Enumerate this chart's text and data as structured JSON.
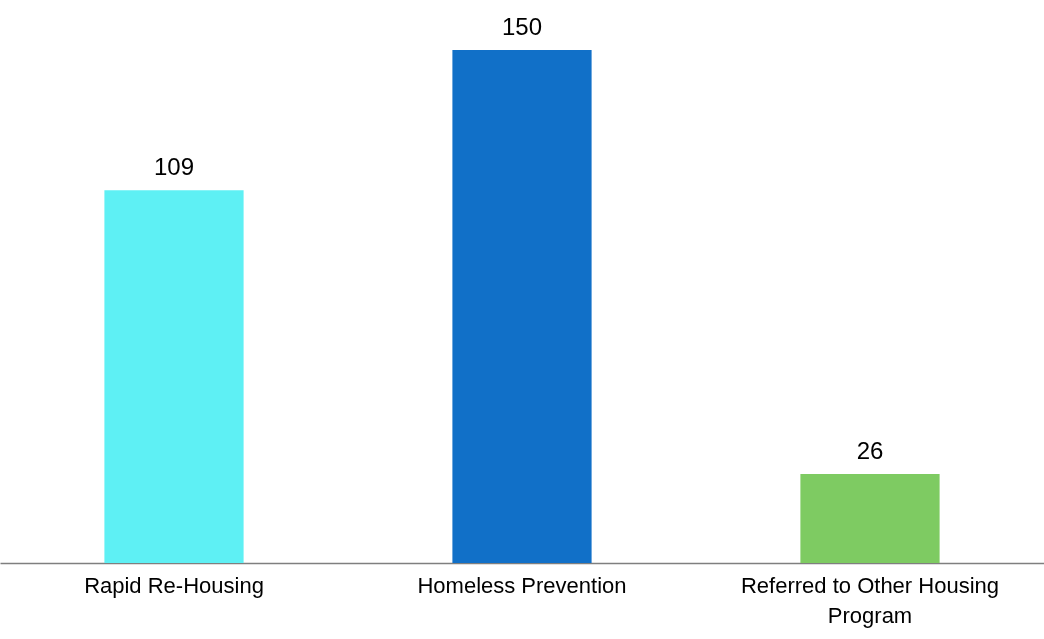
{
  "chart_data": {
    "type": "bar",
    "categories": [
      "Rapid Re-Housing",
      "Homeless Prevention",
      "Referred to Other Housing Program"
    ],
    "values": [
      109,
      150,
      26
    ],
    "colors": [
      "#5ef0f4",
      "#1170c8",
      "#7ecb62"
    ],
    "data_labels": true
  }
}
